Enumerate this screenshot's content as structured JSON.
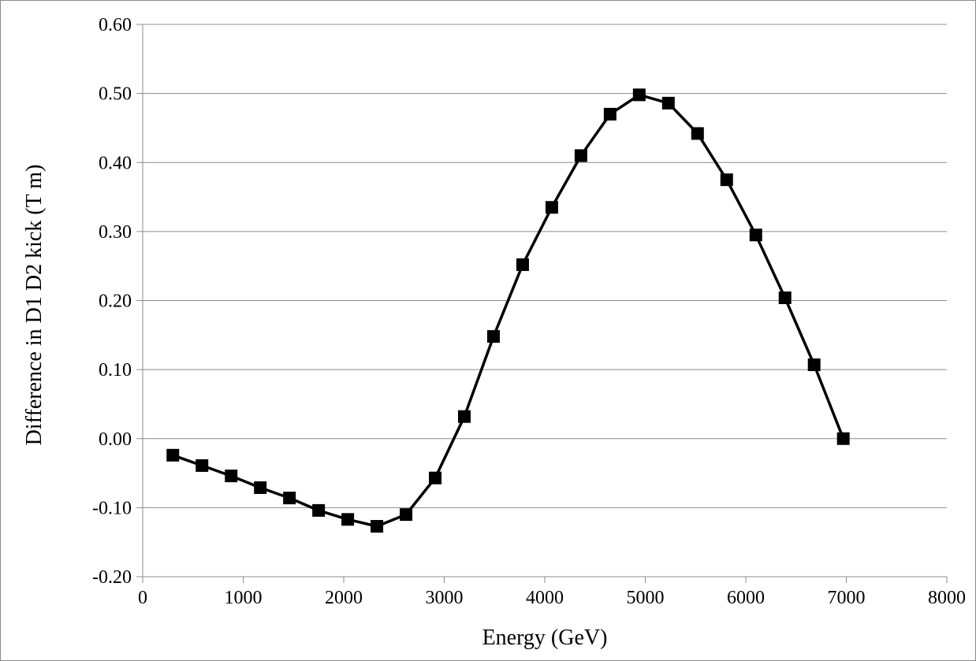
{
  "chart_data": {
    "type": "line",
    "title": "",
    "xlabel": "Energy (GeV)",
    "ylabel": "Difference in D1 D2 kick (T m)",
    "xlim": [
      0,
      8000
    ],
    "ylim": [
      -0.2,
      0.6
    ],
    "x_ticks": [
      "0",
      "1000",
      "2000",
      "3000",
      "4000",
      "5000",
      "6000",
      "7000",
      "8000"
    ],
    "y_ticks": [
      "-0.20",
      "-0.10",
      "0.00",
      "0.10",
      "0.20",
      "0.30",
      "0.40",
      "0.50",
      "0.60"
    ],
    "grid": "horizontal",
    "legend": "none",
    "marker": "square",
    "series": [
      {
        "color": "#000000",
        "x": [
          300,
          590,
          880,
          1170,
          1460,
          1750,
          2040,
          2330,
          2620,
          2910,
          3200,
          3490,
          3780,
          4070,
          4360,
          4650,
          4940,
          5230,
          5520,
          5810,
          6100,
          6390,
          6680,
          6970
        ],
        "y": [
          -0.024,
          -0.039,
          -0.054,
          -0.071,
          -0.086,
          -0.104,
          -0.117,
          -0.127,
          -0.11,
          -0.057,
          0.032,
          0.148,
          0.252,
          0.335,
          0.41,
          0.47,
          0.498,
          0.486,
          0.442,
          0.375,
          0.295,
          0.204,
          0.107,
          0.0
        ]
      }
    ]
  }
}
